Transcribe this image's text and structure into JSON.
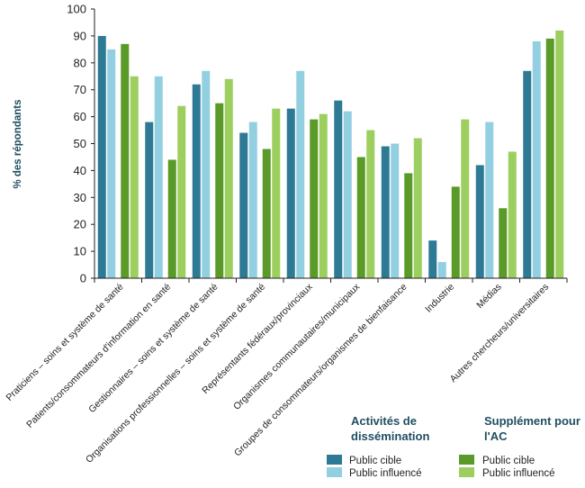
{
  "chart_data": {
    "type": "bar",
    "ylabel": "% des répondants",
    "xlabel": "",
    "ylim": [
      0,
      100
    ],
    "yticks": [
      0,
      10,
      20,
      30,
      40,
      50,
      60,
      70,
      80,
      90,
      100
    ],
    "grid": false,
    "categories": [
      "Praticiens – soins et système de santé",
      "Patients/consommateurs d'information en santé",
      "Gestionnaires – soins et système de santé",
      "Organisations professionnelles – soins et système de santé",
      "Représentants fédéraux/provinciaux",
      "Organismes communautaires/municipaux",
      "Groupes de consommateurs/organismes de bienfaisance",
      "Industrie",
      "Médias",
      "Autres chercheurs/universitaires"
    ],
    "series": [
      {
        "group": "Activités de dissémination",
        "name": "Public cible",
        "color": "#2e7a95",
        "values": [
          90,
          58,
          72,
          54,
          63,
          66,
          49,
          14,
          42,
          77
        ]
      },
      {
        "group": "Activités de dissémination",
        "name": "Public influencé",
        "color": "#92cfe0",
        "values": [
          85,
          75,
          77,
          58,
          77,
          62,
          50,
          6,
          58,
          88
        ]
      },
      {
        "group": "Supplément pour l'AC",
        "name": "Public cible",
        "color": "#5a9a28",
        "values": [
          87,
          44,
          65,
          48,
          59,
          45,
          39,
          34,
          26,
          89
        ]
      },
      {
        "group": "Supplément pour l'AC",
        "name": "Public influencé",
        "color": "#9ccf5f",
        "values": [
          75,
          64,
          74,
          63,
          61,
          55,
          52,
          59,
          47,
          92
        ]
      }
    ],
    "legend": {
      "placement": "bottom-right",
      "groups": [
        {
          "title_line1": "Activités de",
          "title_line2": "dissémination",
          "items": [
            "Public cible",
            "Public influencé"
          ]
        },
        {
          "title_line1": "Supplément pour",
          "title_line2": "l'AC",
          "items": [
            "Public cible",
            "Public influencé"
          ]
        }
      ]
    }
  }
}
